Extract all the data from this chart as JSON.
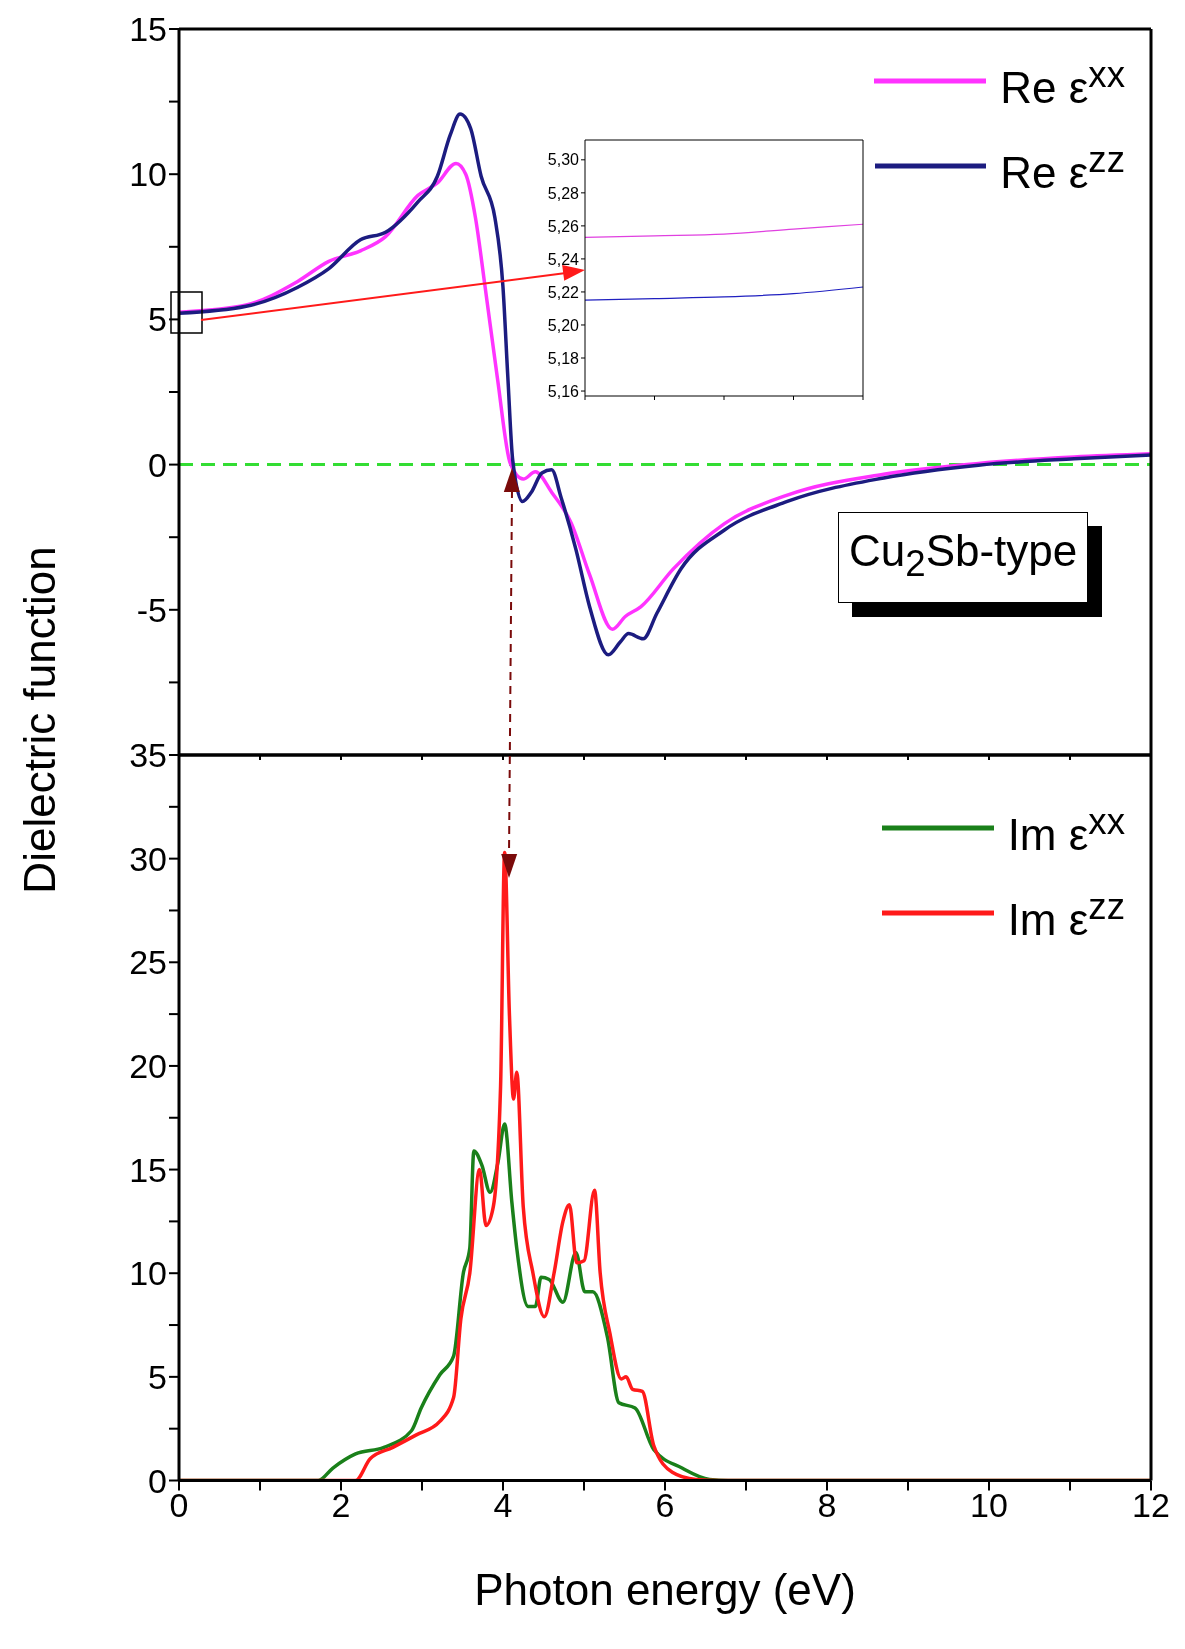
{
  "chart_data": [
    {
      "type": "line",
      "xlim": [
        0,
        12
      ],
      "xticks": [
        0,
        {
          "value": 1,
          "label": null
        },
        2,
        {
          "value": 3,
          "label": null
        },
        4,
        {
          "value": 5,
          "label": null
        },
        6,
        {
          "value": 7,
          "label": null
        },
        8,
        {
          "value": 9,
          "label": null
        },
        10,
        {
          "value": 11,
          "label": null
        },
        12
      ],
      "ylim": [
        -10,
        15
      ],
      "yticks": [
        {
          "value": -10,
          "label": null
        },
        {
          "value": -7.5,
          "label": null
        },
        -5,
        {
          "value": -2.5,
          "label": null
        },
        0,
        {
          "value": 2.5,
          "label": null
        },
        5,
        {
          "value": 7.5,
          "label": null
        },
        10,
        {
          "value": 12.5,
          "label": null
        },
        15
      ],
      "tick_labels": "y",
      "legend": "top right",
      "ref_lines": [
        {
          "axis": "y",
          "value": 0,
          "color": "#33dd33",
          "line_style": "dashed"
        }
      ],
      "annotations": [
        "Cu$_{2}$Sb-type"
      ],
      "series": [
        {
          "name": "Re ε$^{xx}$",
          "color": "#ff33ff",
          "x": [
            0,
            0.83,
            1.46,
            1.85,
            2.24,
            2.55,
            2.95,
            3.19,
            3.42,
            3.54,
            3.66,
            3.78,
            3.93,
            4.09,
            4.25,
            4.4,
            4.6,
            4.84,
            5.07,
            5.35,
            5.51,
            5.7,
            6.1,
            6.73,
            7.51,
            8.7,
            9.87,
            11.05,
            12
          ],
          "values": [
            5.25,
            5.5,
            6.3,
            7.0,
            7.36,
            7.85,
            9.27,
            9.7,
            10.37,
            10.0,
            8.5,
            6.1,
            3.0,
            0.04,
            -0.5,
            -0.25,
            -0.95,
            -2.0,
            -3.8,
            -5.67,
            -5.23,
            -4.9,
            -3.6,
            -2.04,
            -1.05,
            -0.33,
            0.04,
            0.26,
            0.37
          ]
        },
        {
          "name": "Re ε$^{zz}$",
          "color": "#1c1c80",
          "x": [
            0,
            0.83,
            1.46,
            1.85,
            2.24,
            2.55,
            2.95,
            3.19,
            3.35,
            3.47,
            3.6,
            3.73,
            3.9,
            4.0,
            4.06,
            4.12,
            4.24,
            4.35,
            4.48,
            4.6,
            4.72,
            4.9,
            5.07,
            5.3,
            5.45,
            5.55,
            5.73,
            5.9,
            6.2,
            6.73,
            7.51,
            8.7,
            9.87,
            11.05,
            12
          ],
          "values": [
            5.21,
            5.45,
            6.1,
            6.75,
            7.74,
            8.0,
            9.05,
            9.93,
            11.36,
            12.07,
            11.58,
            9.93,
            8.5,
            6.1,
            3.0,
            0.15,
            -1.27,
            -0.95,
            -0.29,
            -0.18,
            -1.16,
            -2.92,
            -4.9,
            -6.55,
            -6.1,
            -5.82,
            -6.0,
            -5.12,
            -3.58,
            -2.26,
            -1.27,
            -0.46,
            -0.02,
            0.2,
            0.33
          ]
        }
      ]
    },
    {
      "type": "line",
      "xlabel": "Photon energy (eV)",
      "ylabel": "Dielectric function",
      "xlim": [
        0,
        12
      ],
      "xticks": [
        0,
        {
          "value": 1,
          "label": null
        },
        2,
        {
          "value": 3,
          "label": null
        },
        4,
        {
          "value": 5,
          "label": null
        },
        6,
        {
          "value": 7,
          "label": null
        },
        8,
        {
          "value": 9,
          "label": null
        },
        10,
        {
          "value": 11,
          "label": null
        },
        12
      ],
      "ylim": [
        0,
        35
      ],
      "yticks": [
        0,
        {
          "value": 2.5,
          "label": null
        },
        5,
        {
          "value": 7.5,
          "label": null
        },
        10,
        {
          "value": 12.5,
          "label": null
        },
        15,
        {
          "value": 17.5,
          "label": null
        },
        20,
        {
          "value": 22.5,
          "label": null
        },
        25,
        {
          "value": 27.5,
          "label": null
        },
        30,
        {
          "value": 32.5,
          "label": null
        },
        35
      ],
      "legend": "top right",
      "series": [
        {
          "name": "Im ε$^{xx}$",
          "color": "#1a801a",
          "x": [
            0,
            1.72,
            1.9,
            2.18,
            2.53,
            2.87,
            2.99,
            3.22,
            3.39,
            3.51,
            3.59,
            3.64,
            3.74,
            3.84,
            3.94,
            4.02,
            4.11,
            4.17,
            4.31,
            4.4,
            4.47,
            4.57,
            4.74,
            4.9,
            5.01,
            5.11,
            5.29,
            5.43,
            5.63,
            5.86,
            6.21,
            6.55,
            6.78,
            12
          ],
          "values": [
            0,
            0,
            0.6,
            1.28,
            1.6,
            2.4,
            3.5,
            5.1,
            6.0,
            10.0,
            11.2,
            15.9,
            15.2,
            13.9,
            15.4,
            17.2,
            13.4,
            11.2,
            8.4,
            8.4,
            9.8,
            9.7,
            8.6,
            11.0,
            9.1,
            9.1,
            6.9,
            3.75,
            3.5,
            1.5,
            0.6,
            0.05,
            0,
            0
          ]
        },
        {
          "name": "Im ε$^{zz}$",
          "color": "#ff1a1a",
          "x": [
            0,
            2.18,
            2.36,
            2.64,
            2.93,
            3.22,
            3.39,
            3.48,
            3.59,
            3.71,
            3.79,
            3.88,
            3.97,
            4.02,
            4.08,
            4.13,
            4.17,
            4.25,
            4.37,
            4.51,
            4.63,
            4.74,
            4.82,
            4.91,
            5.0,
            5.13,
            5.2,
            5.32,
            5.46,
            5.52,
            5.6,
            5.72,
            5.86,
            6.09,
            6.38,
            6.67,
            12
          ],
          "values": [
            0,
            0,
            1.05,
            1.6,
            2.2,
            2.85,
            4.0,
            7.8,
            10.0,
            15.0,
            12.3,
            13.2,
            19.0,
            30.3,
            22.4,
            18.4,
            19.7,
            13.2,
            10.0,
            7.9,
            10.0,
            12.5,
            13.3,
            10.5,
            10.6,
            14.0,
            10.0,
            7.1,
            4.9,
            5.0,
            4.4,
            4.3,
            1.7,
            0.4,
            0.05,
            0,
            0
          ]
        }
      ]
    },
    {
      "type": "line",
      "categories": [
        null,
        null,
        null,
        null,
        null
      ],
      "ylim": [
        5.157,
        5.312
      ],
      "yticks": [
        {
          "value": 5.16,
          "label": "5,16"
        },
        {
          "value": 5.18,
          "label": "5,18"
        },
        {
          "value": 5.2,
          "label": "5,20"
        },
        {
          "value": 5.22,
          "label": "5,22"
        },
        {
          "value": 5.24,
          "label": "5,24"
        },
        {
          "value": 5.26,
          "label": "5,26"
        },
        {
          "value": 5.28,
          "label": "5,28"
        },
        {
          "value": 5.3,
          "label": "5,30"
        }
      ],
      "tick_labels": "y",
      "series": [
        {
          "color": "#e040e0",
          "values": [
            5.253,
            5.254,
            5.255,
            5.258,
            5.261
          ]
        },
        {
          "color": "#2020c0",
          "values": [
            5.215,
            5.216,
            5.217,
            5.219,
            5.223
          ]
        }
      ]
    }
  ]
}
